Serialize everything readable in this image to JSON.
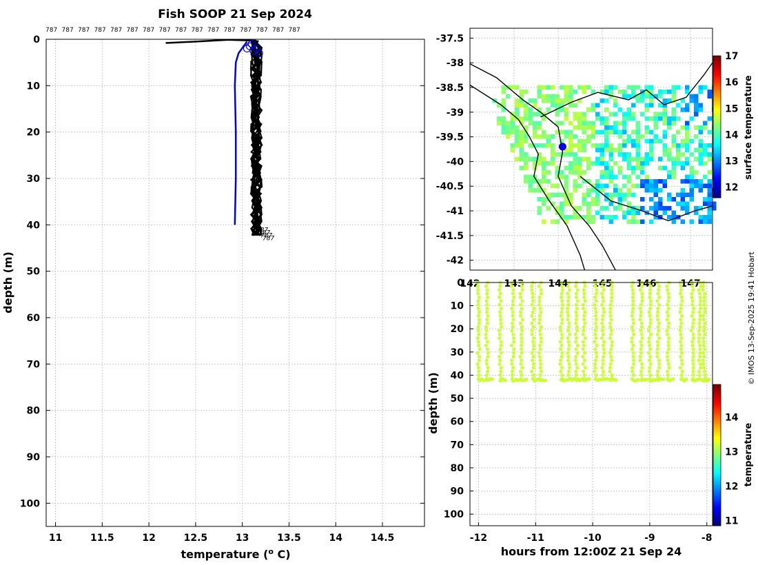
{
  "title": "Fish SOOP 21 Sep 2024",
  "credit": "© IMOS 13-Sep-2025 19:41 Hobart",
  "chart_data": [
    {
      "id": "profile",
      "type": "line",
      "title": "Fish SOOP 21 Sep 2024",
      "xlabel": "temperature (°C)",
      "ylabel": "depth (m)",
      "xlim": [
        10.9,
        14.95
      ],
      "ylim": [
        105,
        0
      ],
      "xticks": [
        11,
        11.5,
        12,
        12.5,
        13,
        13.5,
        14,
        14.5
      ],
      "yticks": [
        0,
        10,
        20,
        30,
        40,
        50,
        60,
        70,
        80,
        90,
        100
      ],
      "top_labels": [
        "787",
        "787",
        "787",
        "787",
        "787",
        "787",
        "787",
        "787",
        "787",
        "787",
        "787",
        "787",
        "787",
        "787",
        "787",
        "787"
      ],
      "bottom_labels": [
        "787",
        "787",
        "787",
        "787"
      ],
      "series": [
        {
          "name": "blue profile",
          "color": "#0000dd",
          "points": [
            [
              13.05,
              0.5
            ],
            [
              12.96,
              3
            ],
            [
              12.93,
              5
            ],
            [
              12.92,
              10
            ],
            [
              12.93,
              20
            ],
            [
              12.93,
              30
            ],
            [
              12.92,
              40
            ]
          ]
        },
        {
          "name": "black profiles",
          "color": "#000000",
          "points": [
            [
              12.18,
              0.8
            ],
            [
              12.5,
              0.5
            ],
            [
              12.85,
              0.1
            ],
            [
              13.15,
              0.3
            ],
            [
              13.15,
              10
            ],
            [
              13.17,
              20
            ],
            [
              13.15,
              30
            ],
            [
              13.16,
              40
            ],
            [
              13.12,
              43
            ]
          ]
        }
      ],
      "markers": [
        [
          13.08,
          1.5
        ],
        [
          13.12,
          2.5
        ],
        [
          13.18,
          3
        ],
        [
          13.1,
          1
        ],
        [
          13.15,
          2
        ],
        [
          13.05,
          2
        ]
      ]
    },
    {
      "id": "map",
      "type": "heatmap",
      "xlim": [
        142,
        147.5
      ],
      "ylim": [
        -42.2,
        -37.3
      ],
      "xticks": [
        "142",
        "143",
        "144",
        "145",
        "146",
        "147"
      ],
      "yticks": [
        "-37.5",
        "-38",
        "-38.5",
        "-39",
        "-39.5",
        "-40",
        "-40.5",
        "-41",
        "-41.5",
        "-42"
      ],
      "colorbar": {
        "label": "surface temperature",
        "min": 11.6,
        "max": 17,
        "ticks": [
          "12",
          "13",
          "14",
          "15",
          "16",
          "17"
        ]
      },
      "vessel_position": [
        144.1,
        -39.7
      ]
    },
    {
      "id": "timeseries",
      "type": "scatter",
      "xlabel": "hours from 12:00Z 21 Sep 24",
      "ylabel": "depth (m)",
      "xlim": [
        -12.15,
        -7.9
      ],
      "ylim": [
        105,
        0
      ],
      "xticks": [
        "-12",
        "-11",
        "-10",
        "-9",
        "-8"
      ],
      "yticks": [
        "0",
        "10",
        "20",
        "30",
        "40",
        "50",
        "60",
        "70",
        "80",
        "90",
        "100"
      ],
      "colorbar": {
        "label": "temperature",
        "min": 10.85,
        "max": 14.95,
        "ticks": [
          "11",
          "12",
          "13",
          "14"
        ]
      },
      "casts_hours": [
        -12.0,
        -11.85,
        -11.62,
        -11.4,
        -11.25,
        -11.05,
        -10.92,
        -10.55,
        -10.42,
        -10.28,
        -10.15,
        -9.95,
        -9.82,
        -9.68,
        -9.3,
        -9.15,
        -9.0,
        -8.85,
        -8.68,
        -8.45,
        -8.25,
        -8.12,
        -8.05
      ],
      "cast_max_depth": 42,
      "temperature_value": 13.2
    }
  ]
}
